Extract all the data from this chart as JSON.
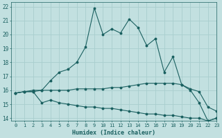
{
  "xlabel": "Humidex (Indice chaleur)",
  "background_color": "#c2e0e0",
  "grid_color": "#a8cece",
  "line_color": "#1a6060",
  "xlim": [
    -0.5,
    23
  ],
  "ylim": [
    13.8,
    22.3
  ],
  "xticks": [
    0,
    1,
    2,
    3,
    4,
    5,
    6,
    7,
    8,
    9,
    10,
    11,
    12,
    13,
    14,
    15,
    16,
    17,
    18,
    19,
    20,
    21,
    22,
    23
  ],
  "yticks": [
    14,
    15,
    16,
    17,
    18,
    19,
    20,
    21,
    22
  ],
  "series": [
    {
      "x": [
        0,
        1,
        2,
        3,
        4,
        5,
        6,
        7,
        8,
        9,
        10,
        11,
        12,
        13,
        14,
        15,
        16,
        17,
        18,
        19,
        20,
        21,
        22,
        23
      ],
      "y": [
        15.8,
        15.9,
        16.0,
        16.0,
        16.7,
        17.3,
        17.5,
        18.0,
        19.1,
        21.9,
        20.0,
        20.4,
        20.1,
        21.1,
        20.5,
        19.2,
        19.7,
        17.3,
        18.4,
        16.4,
        16.0,
        15.1,
        13.8,
        14.0
      ]
    },
    {
      "x": [
        0,
        1,
        2,
        3,
        4,
        5,
        6,
        7,
        8,
        9,
        10,
        11,
        12,
        13,
        14,
        15,
        16,
        17,
        18,
        19,
        20,
        21,
        22,
        23
      ],
      "y": [
        15.8,
        15.9,
        15.9,
        16.0,
        16.0,
        16.0,
        16.0,
        16.1,
        16.1,
        16.1,
        16.1,
        16.2,
        16.2,
        16.3,
        16.4,
        16.5,
        16.5,
        16.5,
        16.5,
        16.4,
        16.1,
        15.9,
        14.8,
        14.5
      ]
    },
    {
      "x": [
        0,
        1,
        2,
        3,
        4,
        5,
        6,
        7,
        8,
        9,
        10,
        11,
        12,
        13,
        14,
        15,
        16,
        17,
        18,
        19,
        20,
        21,
        22,
        23
      ],
      "y": [
        15.8,
        15.9,
        15.9,
        15.1,
        15.3,
        15.1,
        15.0,
        14.9,
        14.8,
        14.8,
        14.7,
        14.7,
        14.6,
        14.5,
        14.4,
        14.3,
        14.3,
        14.2,
        14.2,
        14.1,
        14.0,
        14.0,
        13.8,
        14.0
      ]
    }
  ]
}
